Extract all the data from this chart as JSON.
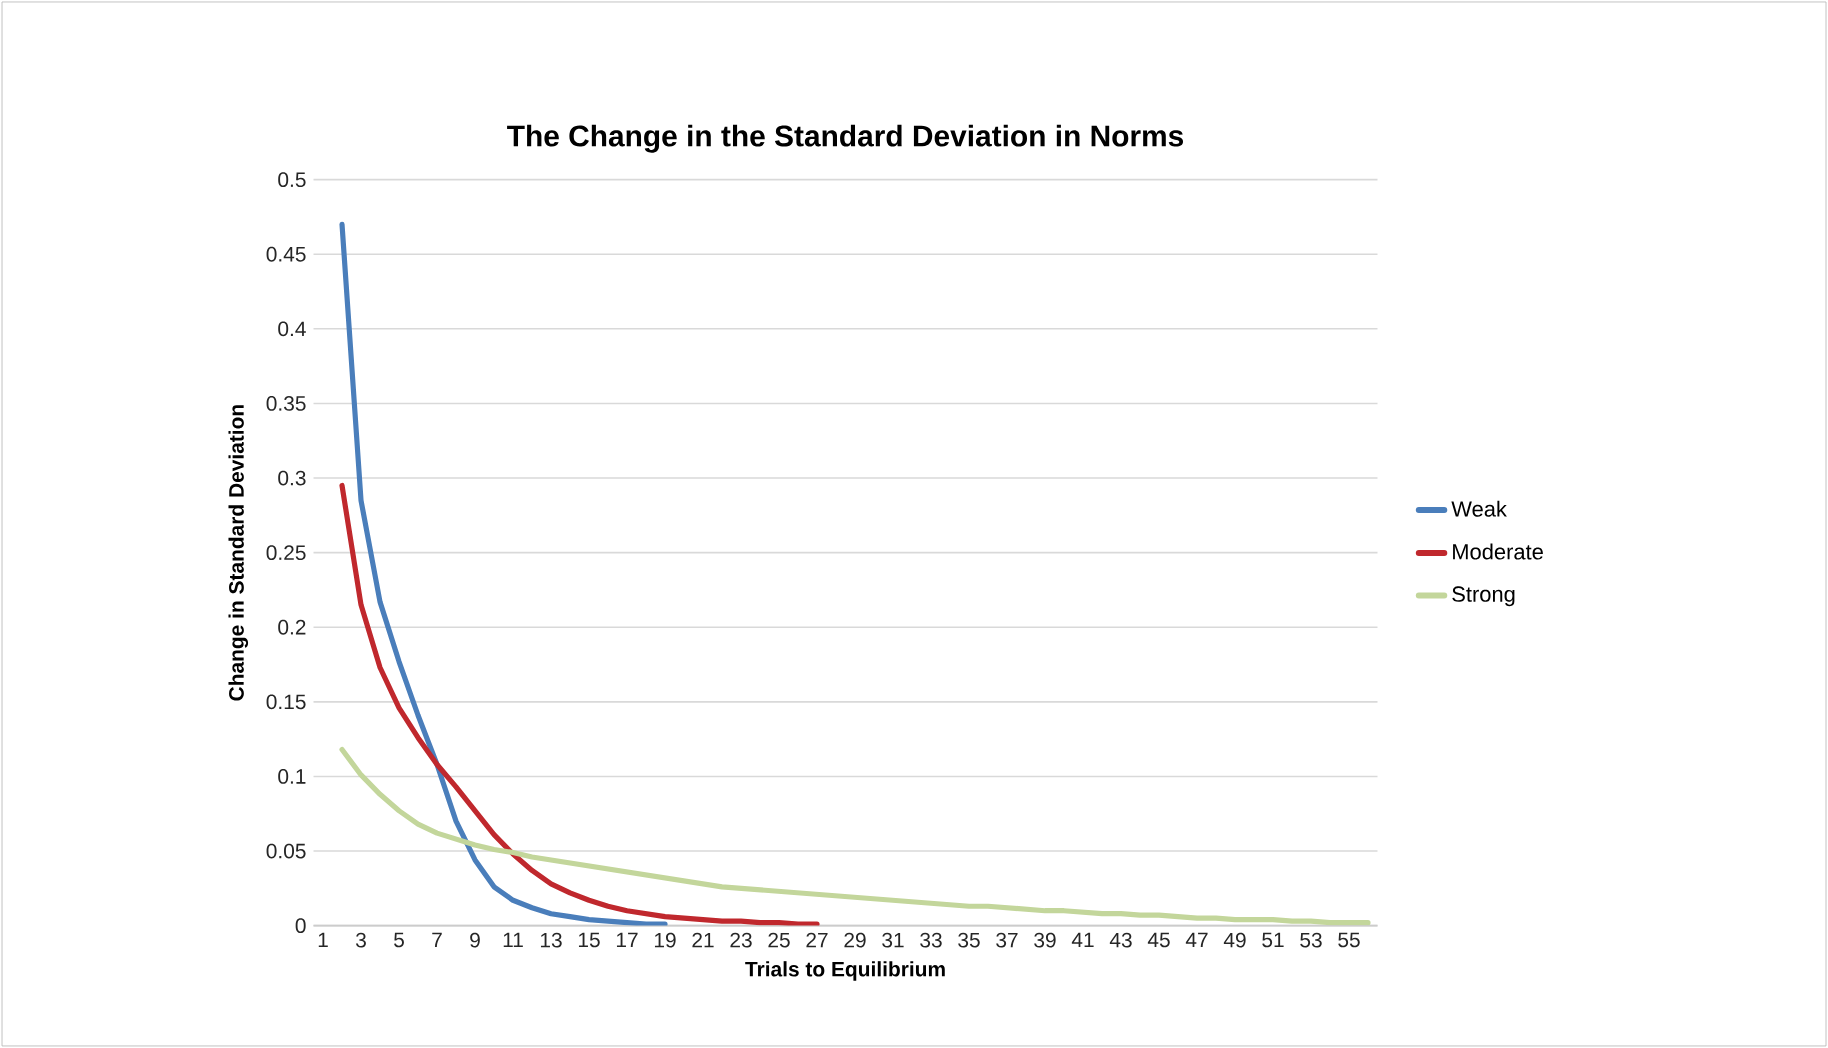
{
  "chart_data": {
    "type": "line",
    "title": "The Change in the Standard Deviation in Norms",
    "xlabel": "Trials to Equilibrium",
    "ylabel": "Change in Standard Deviation",
    "categories": [
      "1",
      null,
      "3",
      null,
      "5",
      null,
      "7",
      null,
      "9",
      null,
      "11",
      null,
      "13",
      null,
      "15",
      null,
      "17",
      null,
      "19",
      null,
      "21",
      null,
      "23",
      null,
      "25",
      null,
      "27",
      null,
      "29",
      null,
      "31",
      null,
      "33",
      null,
      "35",
      null,
      "37",
      null,
      "39",
      null,
      "41",
      null,
      "43",
      null,
      "45",
      null,
      "47",
      null,
      "49",
      null,
      "51",
      null,
      "53",
      null,
      "55",
      null
    ],
    "series": [
      {
        "name": "Weak",
        "color": "#4a7ebb",
        "values": [
          null,
          0.47,
          0.285,
          0.217,
          0.177,
          0.141,
          0.108,
          0.07,
          0.044,
          0.026,
          0.017,
          0.012,
          0.008,
          0.006,
          0.004,
          0.003,
          0.002,
          0.001,
          0.001,
          null,
          null,
          null,
          null,
          null,
          null,
          null,
          null,
          null,
          null,
          null,
          null,
          null,
          null,
          null,
          null,
          null,
          null,
          null,
          null,
          null,
          null,
          null,
          null,
          null,
          null,
          null,
          null,
          null,
          null,
          null,
          null,
          null,
          null,
          null,
          null,
          null
        ]
      },
      {
        "name": "Moderate",
        "color": "#c0282d",
        "values": [
          null,
          0.295,
          0.215,
          0.173,
          0.146,
          0.126,
          0.108,
          0.093,
          0.077,
          0.061,
          0.048,
          0.037,
          0.028,
          0.022,
          0.017,
          0.013,
          0.01,
          0.008,
          0.006,
          0.005,
          0.004,
          0.003,
          0.003,
          0.002,
          0.002,
          0.001,
          0.001,
          null,
          null,
          null,
          null,
          null,
          null,
          null,
          null,
          null,
          null,
          null,
          null,
          null,
          null,
          null,
          null,
          null,
          null,
          null,
          null,
          null,
          null,
          null,
          null,
          null,
          null,
          null,
          null,
          null
        ]
      },
      {
        "name": "Strong",
        "color": "#c3d69b",
        "values": [
          null,
          0.118,
          0.101,
          0.088,
          0.077,
          0.068,
          0.062,
          0.058,
          0.054,
          0.051,
          0.049,
          0.046,
          0.044,
          0.042,
          0.04,
          0.038,
          0.036,
          0.034,
          0.032,
          0.03,
          0.028,
          0.026,
          0.025,
          0.024,
          0.023,
          0.022,
          0.021,
          0.02,
          0.019,
          0.018,
          0.017,
          0.016,
          0.015,
          0.014,
          0.013,
          0.013,
          0.012,
          0.011,
          0.01,
          0.01,
          0.009,
          0.008,
          0.008,
          0.007,
          0.007,
          0.006,
          0.005,
          0.005,
          0.004,
          0.004,
          0.004,
          0.003,
          0.003,
          0.002,
          0.002,
          0.002
        ]
      }
    ],
    "ylim": [
      0,
      0.5
    ],
    "yticks": [
      0,
      0.05,
      0.1,
      0.15,
      0.2,
      0.25,
      0.3,
      0.35,
      0.4,
      0.45,
      0.5
    ],
    "grid": "y",
    "legend": "right",
    "marker": "none",
    "line_style": "solid"
  }
}
